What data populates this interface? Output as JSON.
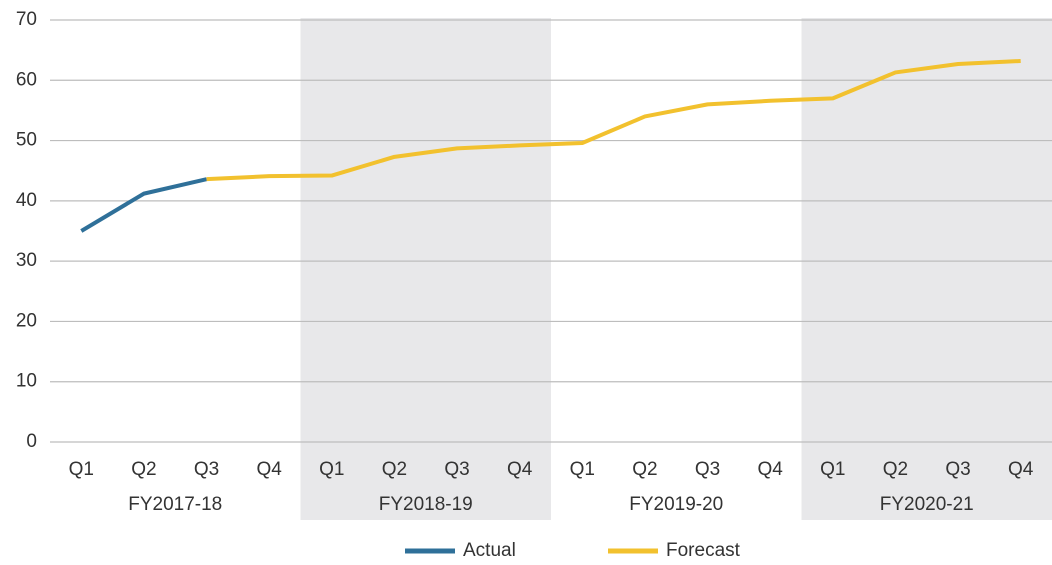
{
  "chart_data": {
    "type": "line",
    "categories": [
      "Q1",
      "Q2",
      "Q3",
      "Q4",
      "Q1",
      "Q2",
      "Q3",
      "Q4",
      "Q1",
      "Q2",
      "Q3",
      "Q4",
      "Q1",
      "Q2",
      "Q3",
      "Q4"
    ],
    "category_groups": [
      "FY2017-18",
      "FY2018-19",
      "FY2019-20",
      "FY2020-21"
    ],
    "group_band_color": "#e8e8ea",
    "series": [
      {
        "name": "Actual",
        "color": "#2f7099",
        "values": [
          35,
          41.2,
          43.6,
          null,
          null,
          null,
          null,
          null,
          null,
          null,
          null,
          null,
          null,
          null,
          null,
          null
        ]
      },
      {
        "name": "Forecast",
        "color": "#f2c12e",
        "values": [
          null,
          null,
          43.6,
          44.1,
          44.2,
          47.3,
          48.7,
          49.2,
          49.6,
          54,
          56,
          56.6,
          57,
          61.3,
          62.7,
          63.2
        ]
      }
    ],
    "ylim": [
      0,
      70
    ],
    "yticks": [
      0,
      10,
      20,
      30,
      40,
      50,
      60,
      70
    ],
    "grid": true,
    "legend": "bottom"
  }
}
